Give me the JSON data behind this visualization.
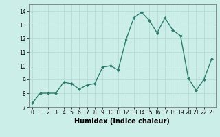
{
  "x": [
    0,
    1,
    2,
    3,
    4,
    5,
    6,
    7,
    8,
    9,
    10,
    11,
    12,
    13,
    14,
    15,
    16,
    17,
    18,
    19,
    20,
    21,
    22,
    23
  ],
  "y": [
    7.3,
    8.0,
    8.0,
    8.0,
    8.8,
    8.7,
    8.3,
    8.6,
    8.7,
    9.9,
    10.0,
    9.7,
    11.9,
    13.5,
    13.9,
    13.3,
    12.4,
    13.5,
    12.6,
    12.2,
    9.1,
    8.2,
    9.0,
    10.5
  ],
  "line_color": "#2d7d6e",
  "marker": "D",
  "marker_size": 2.0,
  "line_width": 1.0,
  "bg_color": "#cceee8",
  "grid_color": "#b0d8d0",
  "xlabel": "Humidex (Indice chaleur)",
  "ylim": [
    7,
    14.5
  ],
  "xlim": [
    -0.5,
    23.5
  ],
  "yticks": [
    7,
    8,
    9,
    10,
    11,
    12,
    13,
    14
  ],
  "xticks": [
    0,
    1,
    2,
    3,
    4,
    5,
    6,
    7,
    8,
    9,
    10,
    11,
    12,
    13,
    14,
    15,
    16,
    17,
    18,
    19,
    20,
    21,
    22,
    23
  ],
  "tick_fontsize": 5.5,
  "xlabel_fontsize": 7.0
}
